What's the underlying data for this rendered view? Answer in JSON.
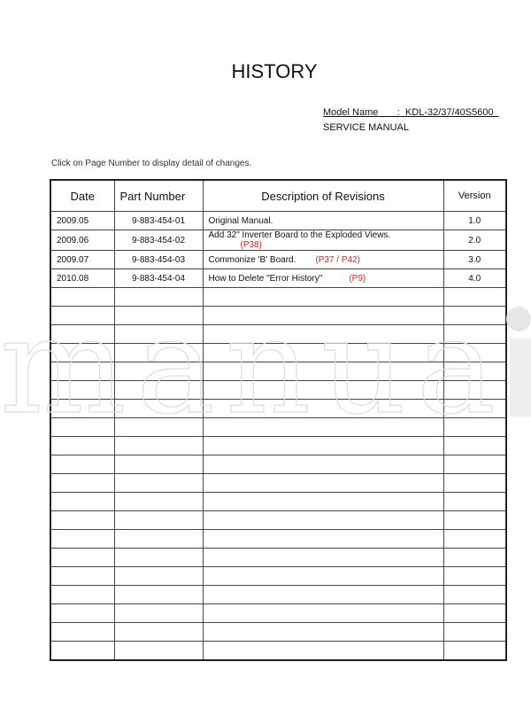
{
  "title": "HISTORY",
  "model_line": "Model Name       :  KDL-32/37/40S5600  ",
  "service_manual": "SERVICE MANUAL",
  "note": "Click on Page Number to display detail of changes.",
  "table": {
    "headers": [
      "Date",
      "Part Number",
      "Description of Revisions",
      "Version"
    ],
    "rows": [
      {
        "date": "2009.05",
        "part": "9-883-454-01",
        "desc": "Original Manual.",
        "page": "",
        "version": "1.0"
      },
      {
        "date": "2009.06",
        "part": "9-883-454-02",
        "desc": "Add 32\" Inverter Board to the Exploded Views.",
        "page": "(P38)",
        "version": "2.0"
      },
      {
        "date": "2009.07",
        "part": "9-883-454-03",
        "desc": "Commonize 'B' Board.",
        "page": "(P37 / P42)",
        "version": "3.0"
      },
      {
        "date": "2010.08",
        "part": "9-883-454-04",
        "desc": "How to Delete \"Error History\"",
        "page": "(P9)",
        "version": "4.0"
      }
    ],
    "empty_rows": 20
  },
  "watermark": "manuali",
  "colors": {
    "link": "#e02020",
    "watermark": "#dddddd"
  }
}
